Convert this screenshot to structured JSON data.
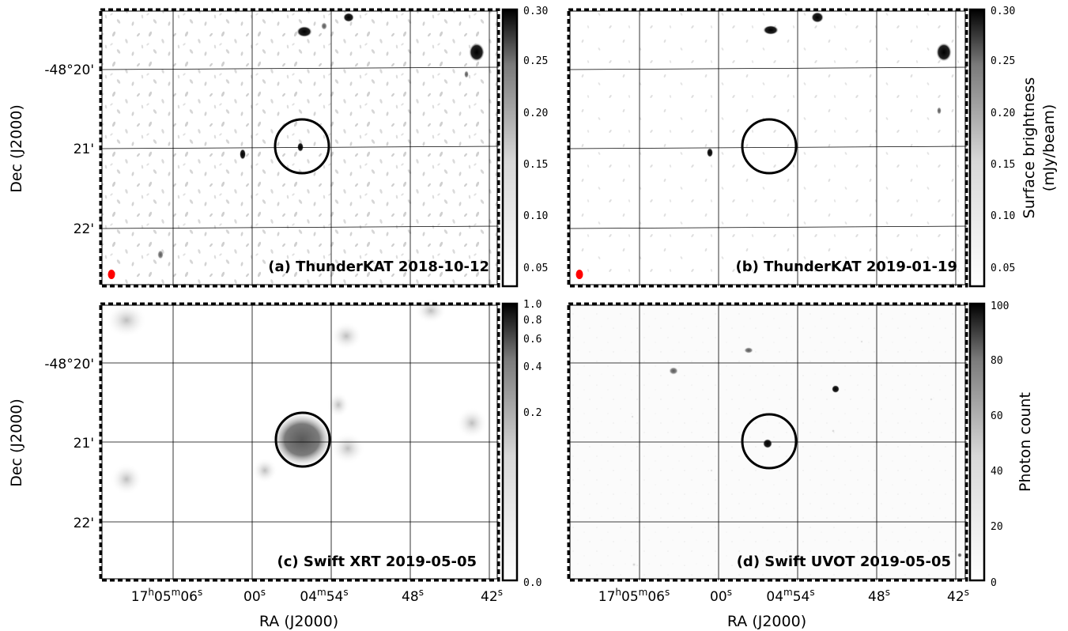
{
  "colors": {
    "beam": "#ff0000",
    "frame": "#000000"
  },
  "axes": {
    "ylabel": "Dec (J2000)",
    "xlabel": "RA (J2000)",
    "dec_ticks": [
      "-48°20'",
      "21'",
      "22'"
    ],
    "ra_ticks": [
      {
        "main": "17",
        "h": "h",
        "m_val": "05",
        "m": "m",
        "s_val": "06",
        "s": "s"
      },
      {
        "main": "00",
        "s": "s"
      },
      {
        "main": "04",
        "m": "m",
        "s_val": "54",
        "s": "s"
      },
      {
        "main": "48",
        "s": "s"
      },
      {
        "main": "42",
        "s": "s"
      }
    ]
  },
  "panels": [
    {
      "label": "(a) ThunderKAT 2018-10-12",
      "survey": "ThunderKAT",
      "colorbar": {
        "ticks": [
          "0.30",
          "0.25",
          "0.20",
          "0.15",
          "0.10",
          "0.05"
        ],
        "title": ""
      }
    },
    {
      "label": "(b) ThunderKAT 2019-01-19",
      "survey": "ThunderKAT",
      "colorbar": {
        "ticks": [
          "0.30",
          "0.25",
          "0.20",
          "0.15",
          "0.10",
          "0.05"
        ],
        "title": "Surface brightness",
        "title2": "(mJy/beam)"
      }
    },
    {
      "label": "(c) Swift XRT 2019-05-05",
      "survey": "Swift XRT",
      "colorbar": {
        "ticks": [
          "1.0",
          "0.8",
          "0.6",
          "0.4",
          "0.2",
          "0.0"
        ],
        "title": ""
      }
    },
    {
      "label": "(d) Swift UVOT 2019-05-05",
      "survey": "Swift UVOT",
      "colorbar": {
        "ticks": [
          "100",
          "80",
          "60",
          "40",
          "20",
          "0"
        ],
        "title": "Photon count"
      }
    }
  ]
}
